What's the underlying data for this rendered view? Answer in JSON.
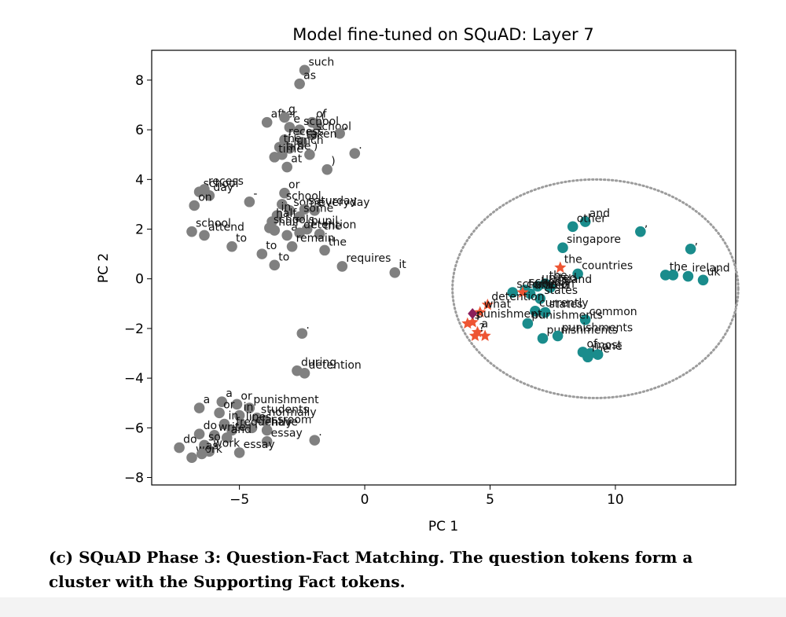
{
  "chart_data": {
    "type": "scatter",
    "title": "Model fine-tuned on SQuAD: Layer 7",
    "xlabel": "PC 1",
    "ylabel": "PC 2",
    "xlim": [
      -8.5,
      14.8
    ],
    "ylim": [
      -8.3,
      9.2
    ],
    "xticks": [
      -5,
      0,
      5,
      10
    ],
    "yticks": [
      -8,
      -6,
      -4,
      -2,
      0,
      2,
      4,
      6,
      8
    ],
    "xtick_labels": [
      "−5",
      "0",
      "5",
      "10"
    ],
    "ytick_labels": [
      "−8",
      "−6",
      "−4",
      "−2",
      "0",
      "2",
      "4",
      "6",
      "8"
    ],
    "grid": false,
    "colors": {
      "other": "#808080",
      "supporting_fact": "#1a8c8c",
      "question": "#ee5533",
      "highlight": "#8b1e5a",
      "ellipse": "#9c9c9c"
    },
    "series": [
      {
        "marker": "circle",
        "color": "#808080",
        "points": [
          {
            "x": -2.4,
            "y": 8.4,
            "label": "such"
          },
          {
            "x": -2.6,
            "y": 7.85,
            "label": "as"
          },
          {
            "x": -3.9,
            "y": 6.3,
            "label": "after"
          },
          {
            "x": -3.2,
            "y": 6.5,
            "label": "g"
          },
          {
            "x": -3.0,
            "y": 6.1,
            "label": "e"
          },
          {
            "x": -2.1,
            "y": 6.3,
            "label": "of"
          },
          {
            "x": -1.9,
            "y": 6.2,
            "label": "("
          },
          {
            "x": -2.6,
            "y": 6.0,
            "label": "school"
          },
          {
            "x": -2.1,
            "y": 5.8,
            "label": "school"
          },
          {
            "x": -1.0,
            "y": 5.85,
            "label": ","
          },
          {
            "x": -3.2,
            "y": 5.6,
            "label": "recess"
          },
          {
            "x": -2.5,
            "y": 5.5,
            "label": "taken"
          },
          {
            "x": -3.4,
            "y": 5.3,
            "label": "the"
          },
          {
            "x": -3.0,
            "y": 5.25,
            "label": "lunch"
          },
          {
            "x": -3.3,
            "y": 5.0,
            "label": "time"
          },
          {
            "x": -3.6,
            "y": 4.9,
            "label": "time"
          },
          {
            "x": -0.4,
            "y": 5.05,
            "label": "."
          },
          {
            "x": -2.2,
            "y": 5.0,
            "label": ")"
          },
          {
            "x": -3.1,
            "y": 4.5,
            "label": "at"
          },
          {
            "x": -1.5,
            "y": 4.4,
            "label": ")"
          },
          {
            "x": -6.6,
            "y": 3.5,
            "label": "school"
          },
          {
            "x": -6.4,
            "y": 3.6,
            "label": "recess"
          },
          {
            "x": -6.2,
            "y": 3.35,
            "label": "day"
          },
          {
            "x": -4.6,
            "y": 3.1,
            "label": "-"
          },
          {
            "x": -6.8,
            "y": 2.95,
            "label": "on"
          },
          {
            "x": -3.2,
            "y": 3.45,
            "label": "or"
          },
          {
            "x": -3.3,
            "y": 3.0,
            "label": "school"
          },
          {
            "x": -3.0,
            "y": 2.75,
            "label": "some"
          },
          {
            "x": -2.4,
            "y": 2.8,
            "label": "saturday"
          },
          {
            "x": -3.5,
            "y": 2.55,
            "label": "in"
          },
          {
            "x": -2.0,
            "y": 2.75,
            "label": "everyday"
          },
          {
            "x": -3.7,
            "y": 2.3,
            "label": "half"
          },
          {
            "x": -2.6,
            "y": 2.5,
            "label": "some"
          },
          {
            "x": -3.8,
            "y": 2.05,
            "label": "schools"
          },
          {
            "x": -2.3,
            "y": 2.0,
            "label": "pupil"
          },
          {
            "x": -6.9,
            "y": 1.9,
            "label": "school"
          },
          {
            "x": -6.4,
            "y": 1.75,
            "label": "attend"
          },
          {
            "x": -3.6,
            "y": 1.95,
            "label": "half"
          },
          {
            "x": -3.1,
            "y": 1.75,
            "label": "a"
          },
          {
            "x": -2.6,
            "y": 1.85,
            "label": "detention"
          },
          {
            "x": -1.8,
            "y": 1.8,
            "label": "the"
          },
          {
            "x": -5.3,
            "y": 1.3,
            "label": "to"
          },
          {
            "x": -2.9,
            "y": 1.3,
            "label": "remain"
          },
          {
            "x": -1.6,
            "y": 1.15,
            "label": "the"
          },
          {
            "x": -4.1,
            "y": 1.0,
            "label": "to"
          },
          {
            "x": -3.6,
            "y": 0.55,
            "label": "to"
          },
          {
            "x": -0.9,
            "y": 0.5,
            "label": "requires"
          },
          {
            "x": 1.2,
            "y": 0.25,
            "label": "it"
          },
          {
            "x": -2.5,
            "y": -2.2,
            "label": "."
          },
          {
            "x": -2.7,
            "y": -3.7,
            "label": "during"
          },
          {
            "x": -2.4,
            "y": -3.8,
            "label": "detention"
          },
          {
            "x": -6.6,
            "y": -5.2,
            "label": "a"
          },
          {
            "x": -5.7,
            "y": -4.95,
            "label": "a"
          },
          {
            "x": -5.1,
            "y": -5.05,
            "label": "or"
          },
          {
            "x": -4.6,
            "y": -5.2,
            "label": "punishment"
          },
          {
            "x": -5.8,
            "y": -5.4,
            "label": "or"
          },
          {
            "x": -5.0,
            "y": -5.5,
            "label": "in"
          },
          {
            "x": -4.3,
            "y": -5.6,
            "label": "students"
          },
          {
            "x": -4.0,
            "y": -5.7,
            "label": "normally"
          },
          {
            "x": -5.6,
            "y": -5.85,
            "label": "in"
          },
          {
            "x": -4.9,
            "y": -5.9,
            "label": "lines"
          },
          {
            "x": -4.5,
            "y": -6.0,
            "label": "classroom"
          },
          {
            "x": -5.3,
            "y": -6.1,
            "label": "frequently"
          },
          {
            "x": -3.9,
            "y": -6.1,
            "label": "have"
          },
          {
            "x": -6.6,
            "y": -6.25,
            "label": "do"
          },
          {
            "x": -6.0,
            "y": -6.3,
            "label": "write"
          },
          {
            "x": -5.5,
            "y": -6.4,
            "label": "and"
          },
          {
            "x": -3.9,
            "y": -6.55,
            "label": "essay"
          },
          {
            "x": -2.0,
            "y": -6.5,
            "label": "."
          },
          {
            "x": -7.4,
            "y": -6.8,
            "label": "do"
          },
          {
            "x": -6.4,
            "y": -6.7,
            "label": "so"
          },
          {
            "x": -6.2,
            "y": -6.95,
            "label": "work"
          },
          {
            "x": -6.9,
            "y": -7.2,
            "label": "work"
          },
          {
            "x": -6.5,
            "y": -7.05,
            "label": "as"
          },
          {
            "x": -5.0,
            "y": -7.0,
            "label": "essay"
          }
        ]
      },
      {
        "marker": "circle",
        "color": "#1a8c8c",
        "points": [
          {
            "x": 8.8,
            "y": 2.3,
            "label": "and"
          },
          {
            "x": 8.3,
            "y": 2.1,
            "label": "other"
          },
          {
            "x": 11.0,
            "y": 1.9,
            "label": ","
          },
          {
            "x": 7.9,
            "y": 1.25,
            "label": "singapore"
          },
          {
            "x": 13.0,
            "y": 1.2,
            "label": ","
          },
          {
            "x": 8.5,
            "y": 0.2,
            "label": "countries"
          },
          {
            "x": 12.0,
            "y": 0.15,
            "label": "the"
          },
          {
            "x": 12.3,
            "y": 0.15,
            "label": ","
          },
          {
            "x": 12.9,
            "y": 0.1,
            "label": "ireland"
          },
          {
            "x": 13.5,
            "y": -0.05,
            "label": "uk"
          },
          {
            "x": 7.2,
            "y": -0.2,
            "label": "the"
          },
          {
            "x": 6.9,
            "y": -0.3,
            "label": "united"
          },
          {
            "x": 7.4,
            "y": -0.35,
            "label": "ireland"
          },
          {
            "x": 6.4,
            "y": -0.45,
            "label": "schools"
          },
          {
            "x": 5.9,
            "y": -0.55,
            "label": "schools"
          },
          {
            "x": 6.6,
            "y": -0.6,
            "label": "united"
          },
          {
            "x": 7.0,
            "y": -0.8,
            "label": "states"
          },
          {
            "x": 6.8,
            "y": -1.3,
            "label": "currently"
          },
          {
            "x": 7.2,
            "y": -1.35,
            "label": "states"
          },
          {
            "x": 8.8,
            "y": -1.65,
            "label": "common"
          },
          {
            "x": 6.5,
            "y": -1.8,
            "label": "punishments"
          },
          {
            "x": 7.1,
            "y": -2.4,
            "label": "punishments"
          },
          {
            "x": 7.7,
            "y": -2.3,
            "label": "punishments"
          },
          {
            "x": 8.7,
            "y": -2.95,
            "label": "of"
          },
          {
            "x": 9.0,
            "y": -3.0,
            "label": "most"
          },
          {
            "x": 8.9,
            "y": -3.15,
            "label": "the"
          },
          {
            "x": 9.3,
            "y": -3.05,
            "label": "one"
          }
        ]
      },
      {
        "marker": "star",
        "color": "#ee5533",
        "points": [
          {
            "x": 7.8,
            "y": 0.45,
            "label": "the"
          },
          {
            "x": 6.3,
            "y": -0.55,
            "label": "common"
          },
          {
            "x": 4.9,
            "y": -1.05,
            "label": "detention"
          },
          {
            "x": 4.6,
            "y": -1.35,
            "label": "what"
          },
          {
            "x": 4.3,
            "y": -1.75,
            "label": "punishment"
          },
          {
            "x": 4.1,
            "y": -1.8,
            "label": "is"
          },
          {
            "x": 4.5,
            "y": -2.15,
            "label": "a"
          },
          {
            "x": 4.4,
            "y": -2.3,
            "label": "?"
          },
          {
            "x": 4.8,
            "y": -2.3,
            "label": ""
          }
        ]
      },
      {
        "marker": "diamond",
        "color": "#8b1e5a",
        "points": [
          {
            "x": 4.3,
            "y": -1.4,
            "label": ""
          }
        ]
      }
    ]
  },
  "caption": "(c) SQuAD Phase 3: Question-Fact Matching. The question tokens form a cluster with the Supporting Fact tokens."
}
